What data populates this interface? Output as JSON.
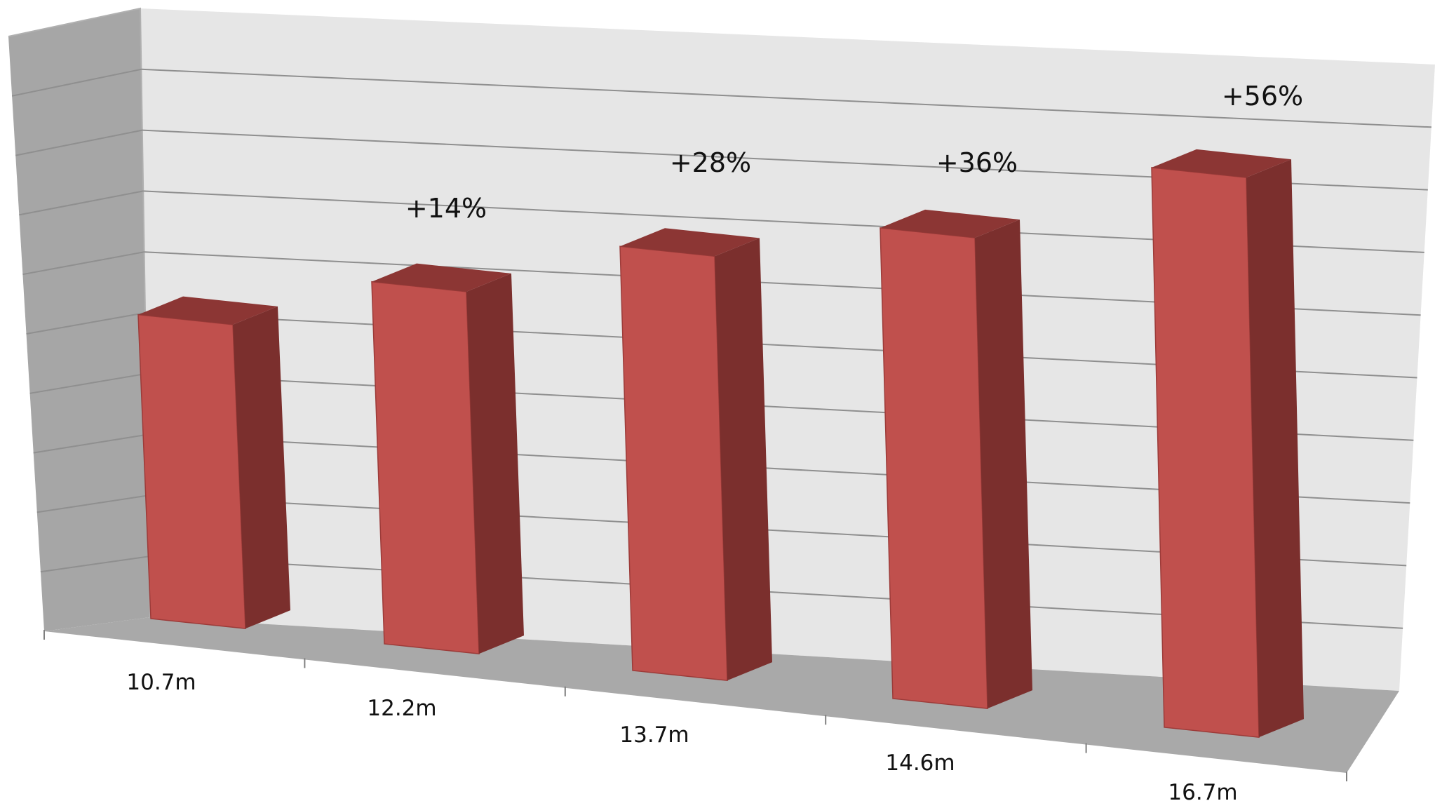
{
  "chart_data": {
    "type": "bar",
    "style": "3d-perspective",
    "categories": [
      "10.7m",
      "12.2m",
      "13.7m",
      "14.6m",
      "16.7m"
    ],
    "values": [
      10.7,
      12.2,
      13.7,
      14.6,
      16.7
    ],
    "annotations": [
      "",
      "+14%",
      "+28%",
      "+36%",
      "+56%"
    ],
    "title": "",
    "xlabel": "",
    "ylabel": "",
    "grid": true,
    "legend": "none",
    "y_tick_labels_shown": false,
    "colors": {
      "bar_front": "#c0504d",
      "bar_side": "#7b2f2d",
      "bar_top": "#8c3634",
      "back_wall": "#e6e6e6",
      "side_wall": "#a6a6a6",
      "floor": "#a9a9a9",
      "gridline": "#8f8f8f"
    }
  }
}
